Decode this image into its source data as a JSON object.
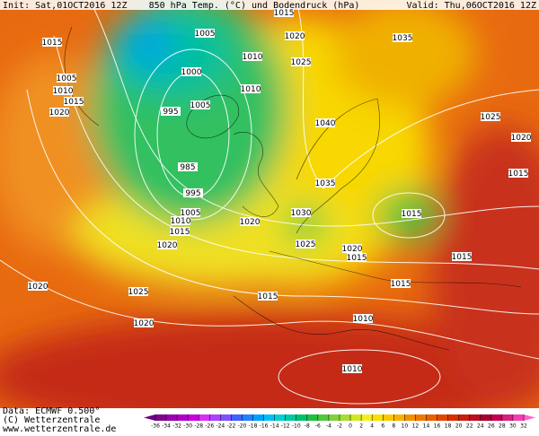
{
  "header": {
    "init": "Init: Sat,01OCT2016 12Z",
    "title": "850 hPa Temp. (°C) und Bodendruck (hPa)",
    "valid": "Valid: Thu,06OCT2016 12Z"
  },
  "footer": {
    "data": "Data: ECMWF  0.500°",
    "copyright": "(C) Wetterzentrale",
    "url": "www.wetterzentrale.de"
  },
  "isobar_labels": [
    1015,
    1015,
    1005,
    1020,
    1035,
    1010,
    1025,
    1005,
    1000,
    1010,
    1015,
    1010,
    1020,
    995,
    1005,
    1040,
    1025,
    1020,
    985,
    1015,
    1035,
    995,
    1005,
    1030,
    1015,
    1010,
    1020,
    1015,
    1025,
    1020,
    1020,
    1015,
    1015,
    1020,
    1025,
    1015,
    1015,
    1020,
    1010,
    1010
  ],
  "color_scale": {
    "ticks": [
      -36,
      -34,
      -32,
      -30,
      -28,
      -26,
      -24,
      -22,
      -20,
      -18,
      -16,
      -14,
      -12,
      -10,
      -8,
      -6,
      -4,
      -2,
      0,
      2,
      4,
      6,
      8,
      10,
      12,
      14,
      16,
      18,
      20,
      22,
      24,
      26,
      28,
      30,
      32
    ],
    "colors": [
      "#6b0080",
      "#800090",
      "#9a00b0",
      "#b000c8",
      "#c800e0",
      "#d830f0",
      "#b040ff",
      "#8050ff",
      "#4060ff",
      "#2080ff",
      "#00a0ff",
      "#00c0f0",
      "#00d0d0",
      "#00c8a0",
      "#00c070",
      "#20c040",
      "#50c840",
      "#80d040",
      "#a8dc30",
      "#d0e820",
      "#f0f020",
      "#f8e000",
      "#f8c800",
      "#f8b000",
      "#f09000",
      "#f07800",
      "#e86000",
      "#e04800",
      "#d83000",
      "#c82010",
      "#b81020",
      "#a80030",
      "#c00050",
      "#d82080",
      "#f040b0",
      "#ff60d0"
    ]
  }
}
